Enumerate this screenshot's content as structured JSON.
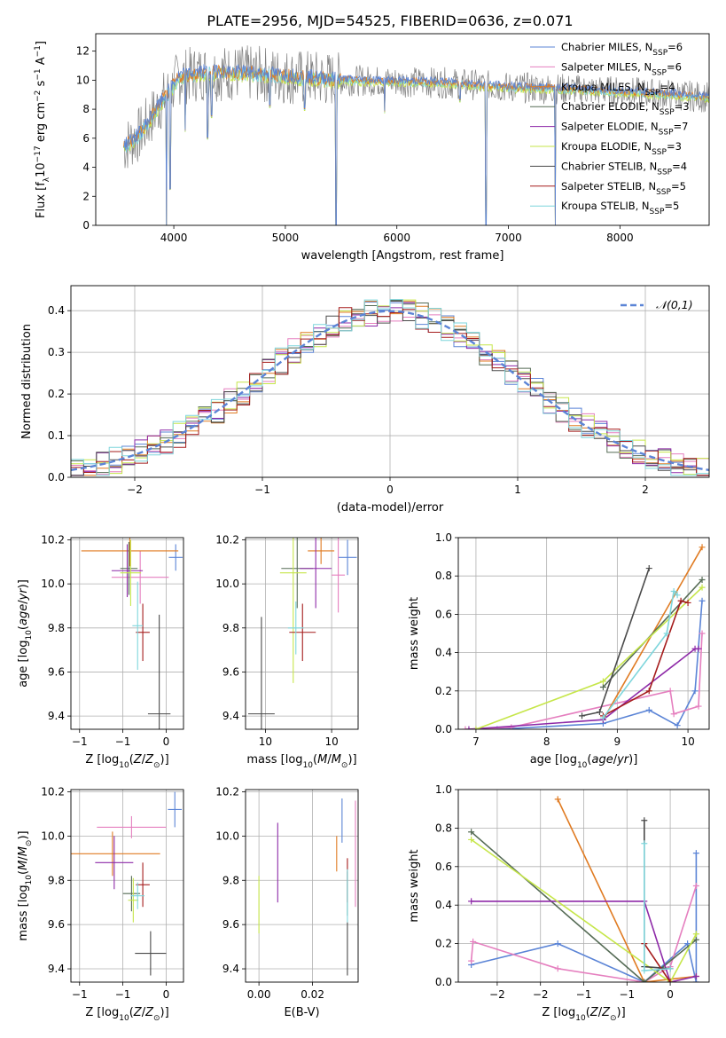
{
  "figure_title": "PLATE=2956, MJD=54525, FIBERID=0636, z=0.071",
  "models": [
    {
      "name": "Chabrier MILES",
      "nssp": "6",
      "color": "#5b84d6"
    },
    {
      "name": "Salpeter MILES",
      "nssp": "6",
      "color": "#e57fbf"
    },
    {
      "name": "Kroupa MILES",
      "nssp": "4",
      "color": "#e07b22"
    },
    {
      "name": "Chabrier ELODIE",
      "nssp": "3",
      "color": "#556b55"
    },
    {
      "name": "Salpeter ELODIE",
      "nssp": "7",
      "color": "#8e2aa8"
    },
    {
      "name": "Kroupa ELODIE",
      "nssp": "3",
      "color": "#c6e64a"
    },
    {
      "name": "Chabrier STELIB",
      "nssp": "4",
      "color": "#4a4a4a"
    },
    {
      "name": "Salpeter STELIB",
      "nssp": "5",
      "color": "#a51c1c"
    },
    {
      "name": "Kroupa STELIB",
      "nssp": "5",
      "color": "#7fd6dc"
    }
  ],
  "chart_data": [
    {
      "id": "spectrum",
      "type": "line",
      "xlabel": "wavelength [Angstrom, rest frame]",
      "ylabel": "Flux [f_λ10^-17 erg cm^-2 s^-1 A^-1]",
      "xlim": [
        3300,
        8800
      ],
      "ylim": [
        0,
        13.2
      ],
      "xticks": [
        4000,
        5000,
        6000,
        7000,
        8000
      ],
      "yticks": [
        0,
        2,
        4,
        6,
        8,
        10,
        12
      ],
      "grid": false,
      "legend": "top-right",
      "data_color": "#808080",
      "continuum": [
        [
          3550,
          5.4
        ],
        [
          3700,
          6.3
        ],
        [
          3900,
          8.6
        ],
        [
          4050,
          10.2
        ],
        [
          4250,
          10.5
        ],
        [
          4500,
          10.5
        ],
        [
          4800,
          10.4
        ],
        [
          5100,
          10.2
        ],
        [
          5500,
          10.0
        ],
        [
          6000,
          9.9
        ],
        [
          6500,
          9.8
        ],
        [
          7000,
          9.5
        ],
        [
          7500,
          9.4
        ],
        [
          8000,
          9.2
        ],
        [
          8500,
          9.0
        ],
        [
          8800,
          8.8
        ]
      ],
      "absorption_lines": [
        [
          3934,
          0.0
        ],
        [
          3968,
          2.5
        ],
        [
          4102,
          6.5
        ],
        [
          4304,
          6.0
        ],
        [
          4340,
          7.5
        ],
        [
          4861,
          8.2
        ],
        [
          5175,
          8.0
        ],
        [
          5455,
          0.0
        ],
        [
          5890,
          7.8
        ],
        [
          6563,
          8.6
        ],
        [
          6800,
          0.0
        ],
        [
          7420,
          0.0
        ]
      ]
    },
    {
      "id": "residuals",
      "type": "step",
      "xlabel": "(data-model)/error",
      "ylabel": "Normed distribution",
      "xlim": [
        -2.5,
        2.5
      ],
      "ylim": [
        0,
        0.46
      ],
      "xticks": [
        -2,
        -1,
        0,
        1,
        2
      ],
      "yticks": [
        0.0,
        0.1,
        0.2,
        0.3,
        0.4
      ],
      "grid": true,
      "legend": "top-right",
      "reference_label": "𝒩(0,1)",
      "reference_color": "#5b84d6"
    },
    {
      "id": "age_vs_Z",
      "type": "errorbar",
      "xlabel": "Z [log10(Z/Z☉)]",
      "ylabel": "age  [log10(age/yr)]",
      "xlim": [
        -1.1,
        0.2
      ],
      "ylim": [
        9.34,
        10.21
      ],
      "xticks": [
        -1.0,
        -0.5,
        0.0
      ],
      "yticks": [
        9.4,
        9.6,
        9.8,
        10.0,
        10.2
      ],
      "grid": true,
      "points": [
        {
          "m": 0,
          "x": 0.11,
          "y": 10.12,
          "xe": 0.08,
          "ye": 0.06
        },
        {
          "m": 1,
          "x": -0.3,
          "y": 10.03,
          "xe": 0.33,
          "ye": 0.12
        },
        {
          "m": 2,
          "x": -0.42,
          "y": 10.15,
          "xe": 0.56,
          "ye": 0.07
        },
        {
          "m": 3,
          "x": -0.43,
          "y": 10.07,
          "xe": 0.1,
          "ye": 0.12
        },
        {
          "m": 4,
          "x": -0.45,
          "y": 10.06,
          "xe": 0.18,
          "ye": 0.12
        },
        {
          "m": 5,
          "x": -0.41,
          "y": 10.05,
          "xe": 0.12,
          "ye": 0.15
        },
        {
          "m": 6,
          "x": -0.08,
          "y": 9.41,
          "xe": 0.13,
          "ye": 0.45
        },
        {
          "m": 7,
          "x": -0.27,
          "y": 9.78,
          "xe": 0.08,
          "ye": 0.13
        },
        {
          "m": 8,
          "x": -0.33,
          "y": 9.81,
          "xe": 0.06,
          "ye": 0.2
        }
      ]
    },
    {
      "id": "age_vs_mass",
      "type": "errorbar",
      "xlabel": "mass [log10(M/M☉)]",
      "ylabel": "",
      "xlim": [
        9.35,
        10.2
      ],
      "ylim": [
        9.34,
        10.21
      ],
      "xticks": [
        9.5,
        10.0
      ],
      "yticks": [
        9.4,
        9.6,
        9.8,
        10.0,
        10.2
      ],
      "grid": true,
      "points": [
        {
          "m": 0,
          "x": 10.12,
          "y": 10.12,
          "xe": 0.07,
          "ye": 0.08
        },
        {
          "m": 1,
          "x": 10.05,
          "y": 10.04,
          "xe": 0.05,
          "ye": 0.17
        },
        {
          "m": 2,
          "x": 9.92,
          "y": 10.15,
          "xe": 0.1,
          "ye": 0.06
        },
        {
          "m": 3,
          "x": 9.74,
          "y": 10.07,
          "xe": 0.12,
          "ye": 0.18
        },
        {
          "m": 4,
          "x": 9.88,
          "y": 10.07,
          "xe": 0.12,
          "ye": 0.18
        },
        {
          "m": 5,
          "x": 9.71,
          "y": 10.05,
          "xe": 0.1,
          "ye": 0.5
        },
        {
          "m": 6,
          "x": 9.47,
          "y": 9.41,
          "xe": 0.1,
          "ye": 0.44
        },
        {
          "m": 7,
          "x": 9.78,
          "y": 9.78,
          "xe": 0.1,
          "ye": 0.13
        },
        {
          "m": 8,
          "x": 9.73,
          "y": 9.8,
          "xe": 0.06,
          "ye": 0.12
        }
      ]
    },
    {
      "id": "weight_vs_age",
      "type": "line",
      "xlabel": "age  [log10(age/yr)]",
      "ylabel": "mass weight",
      "xlim": [
        6.75,
        10.3
      ],
      "ylim": [
        0,
        1
      ],
      "xticks": [
        7,
        8,
        9,
        10
      ],
      "yticks": [
        0.0,
        0.2,
        0.4,
        0.6,
        0.8,
        1.0
      ],
      "grid": true,
      "series": [
        {
          "m": 0,
          "points": [
            [
              7.3,
              0.0
            ],
            [
              8.8,
              0.03
            ],
            [
              9.45,
              0.1
            ],
            [
              9.85,
              0.02
            ],
            [
              10.1,
              0.2
            ],
            [
              10.2,
              0.67
            ]
          ]
        },
        {
          "m": 1,
          "points": [
            [
              6.85,
              0.0
            ],
            [
              7.5,
              0.01
            ],
            [
              9.75,
              0.2
            ],
            [
              9.8,
              0.08
            ],
            [
              10.15,
              0.12
            ],
            [
              10.2,
              0.5
            ]
          ]
        },
        {
          "m": 2,
          "points": [
            [
              8.8,
              0.05
            ],
            [
              10.2,
              0.95
            ]
          ]
        },
        {
          "m": 3,
          "points": [
            [
              8.8,
              0.22
            ],
            [
              10.2,
              0.78
            ]
          ]
        },
        {
          "m": 4,
          "points": [
            [
              6.9,
              0.0
            ],
            [
              8.8,
              0.05
            ],
            [
              10.1,
              0.42
            ],
            [
              10.15,
              0.42
            ]
          ]
        },
        {
          "m": 5,
          "points": [
            [
              7.0,
              0.0
            ],
            [
              8.8,
              0.25
            ],
            [
              10.2,
              0.74
            ]
          ]
        },
        {
          "m": 6,
          "points": [
            [
              8.5,
              0.07
            ],
            [
              8.75,
              0.09
            ],
            [
              9.45,
              0.84
            ]
          ]
        },
        {
          "m": 7,
          "points": [
            [
              8.8,
              0.07
            ],
            [
              9.45,
              0.2
            ],
            [
              9.9,
              0.67
            ],
            [
              10.0,
              0.66
            ]
          ]
        },
        {
          "m": 8,
          "points": [
            [
              8.8,
              0.06
            ],
            [
              9.7,
              0.5
            ],
            [
              9.8,
              0.72
            ],
            [
              9.85,
              0.7
            ]
          ]
        }
      ]
    },
    {
      "id": "mass_vs_Z",
      "type": "errorbar",
      "xlabel": "Z [log10(Z/Z☉)]",
      "ylabel": "mass [log10(M/M☉)]",
      "xlim": [
        -1.1,
        0.2
      ],
      "ylim": [
        9.34,
        10.21
      ],
      "xticks": [
        -1.0,
        -0.5,
        0.0
      ],
      "yticks": [
        9.4,
        9.6,
        9.8,
        10.0,
        10.2
      ],
      "grid": true,
      "points": [
        {
          "m": 0,
          "x": 0.1,
          "y": 10.12,
          "xe": 0.08,
          "ye": 0.08
        },
        {
          "m": 1,
          "x": -0.4,
          "y": 10.04,
          "xe": 0.4,
          "ye": 0.05
        },
        {
          "m": 2,
          "x": -0.62,
          "y": 9.92,
          "xe": 0.55,
          "ye": 0.1
        },
        {
          "m": 3,
          "x": -0.4,
          "y": 9.74,
          "xe": 0.1,
          "ye": 0.08
        },
        {
          "m": 4,
          "x": -0.6,
          "y": 9.88,
          "xe": 0.22,
          "ye": 0.12
        },
        {
          "m": 5,
          "x": -0.38,
          "y": 9.71,
          "xe": 0.06,
          "ye": 0.1
        },
        {
          "m": 6,
          "x": -0.18,
          "y": 9.47,
          "xe": 0.18,
          "ye": 0.1
        },
        {
          "m": 7,
          "x": -0.27,
          "y": 9.78,
          "xe": 0.08,
          "ye": 0.1
        },
        {
          "m": 8,
          "x": -0.33,
          "y": 9.73,
          "xe": 0.08,
          "ye": 0.06
        }
      ]
    },
    {
      "id": "mass_vs_ebv",
      "type": "errorbar",
      "xlabel": "E(B-V)",
      "ylabel": "",
      "xlim": [
        -0.005,
        0.037
      ],
      "ylim": [
        9.34,
        10.21
      ],
      "xticks": [
        0.0,
        0.02
      ],
      "yticks": [
        9.4,
        9.6,
        9.8,
        10.0,
        10.2
      ],
      "grid": true,
      "points": [
        {
          "m": 0,
          "x": 0.031,
          "y": 10.07,
          "xe": 0,
          "ye": 0.1
        },
        {
          "m": 1,
          "x": 0.036,
          "y": 9.92,
          "xe": 0,
          "ye": 0.24
        },
        {
          "m": 2,
          "x": 0.029,
          "y": 9.92,
          "xe": 0,
          "ye": 0.08
        },
        {
          "m": 3,
          "x": 0.033,
          "y": 9.74,
          "xe": 0,
          "ye": 0.1
        },
        {
          "m": 4,
          "x": 0.007,
          "y": 9.88,
          "xe": 0,
          "ye": 0.18
        },
        {
          "m": 5,
          "x": 0.0,
          "y": 9.69,
          "xe": 0,
          "ye": 0.13
        },
        {
          "m": 6,
          "x": 0.033,
          "y": 9.49,
          "xe": 0,
          "ye": 0.12
        },
        {
          "m": 7,
          "x": 0.033,
          "y": 9.8,
          "xe": 0,
          "ye": 0.1
        },
        {
          "m": 8,
          "x": 0.033,
          "y": 9.73,
          "xe": 0,
          "ye": 0.12
        }
      ]
    },
    {
      "id": "weight_vs_Z",
      "type": "line",
      "xlabel": "Z [log10(Z/Z☉)]",
      "ylabel": "mass weight",
      "xlim": [
        -2.45,
        0.45
      ],
      "ylim": [
        0,
        1
      ],
      "xticks": [
        -2.0,
        -1.5,
        -1.0,
        -0.5,
        0.0
      ],
      "yticks": [
        0.0,
        0.2,
        0.4,
        0.6,
        0.8,
        1.0
      ],
      "grid": true,
      "series": [
        {
          "m": 0,
          "points": [
            [
              -2.3,
              0.09
            ],
            [
              -1.3,
              0.2
            ],
            [
              -0.3,
              0.0
            ],
            [
              0.2,
              0.2
            ],
            [
              0.3,
              0.0
            ],
            [
              0.3,
              0.67
            ]
          ]
        },
        {
          "m": 1,
          "points": [
            [
              -2.3,
              0.11
            ],
            [
              -2.28,
              0.21
            ],
            [
              -1.3,
              0.07
            ],
            [
              -0.3,
              0.0
            ],
            [
              0.0,
              0.08
            ],
            [
              0.3,
              0.5
            ]
          ]
        },
        {
          "m": 2,
          "points": [
            [
              -1.3,
              0.95
            ],
            [
              -0.3,
              0.0
            ],
            [
              0.3,
              0.03
            ]
          ]
        },
        {
          "m": 3,
          "points": [
            [
              -2.3,
              0.78
            ],
            [
              -0.3,
              0.0
            ],
            [
              0.3,
              0.22
            ]
          ]
        },
        {
          "m": 4,
          "points": [
            [
              -2.3,
              0.42
            ],
            [
              -0.3,
              0.42
            ],
            [
              0.0,
              0.0
            ],
            [
              0.3,
              0.03
            ]
          ]
        },
        {
          "m": 5,
          "points": [
            [
              -2.3,
              0.74
            ],
            [
              0.0,
              0.0
            ],
            [
              0.3,
              0.25
            ]
          ]
        },
        {
          "m": 6,
          "points": [
            [
              -0.3,
              0.84
            ],
            [
              -0.3,
              0.08
            ],
            [
              0.0,
              0.07
            ]
          ]
        },
        {
          "m": 7,
          "points": [
            [
              -0.3,
              0.2
            ],
            [
              0.0,
              0.0
            ]
          ]
        },
        {
          "m": 8,
          "points": [
            [
              -0.3,
              0.72
            ],
            [
              -0.3,
              0.06
            ],
            [
              0.0,
              0.07
            ]
          ]
        }
      ]
    }
  ]
}
